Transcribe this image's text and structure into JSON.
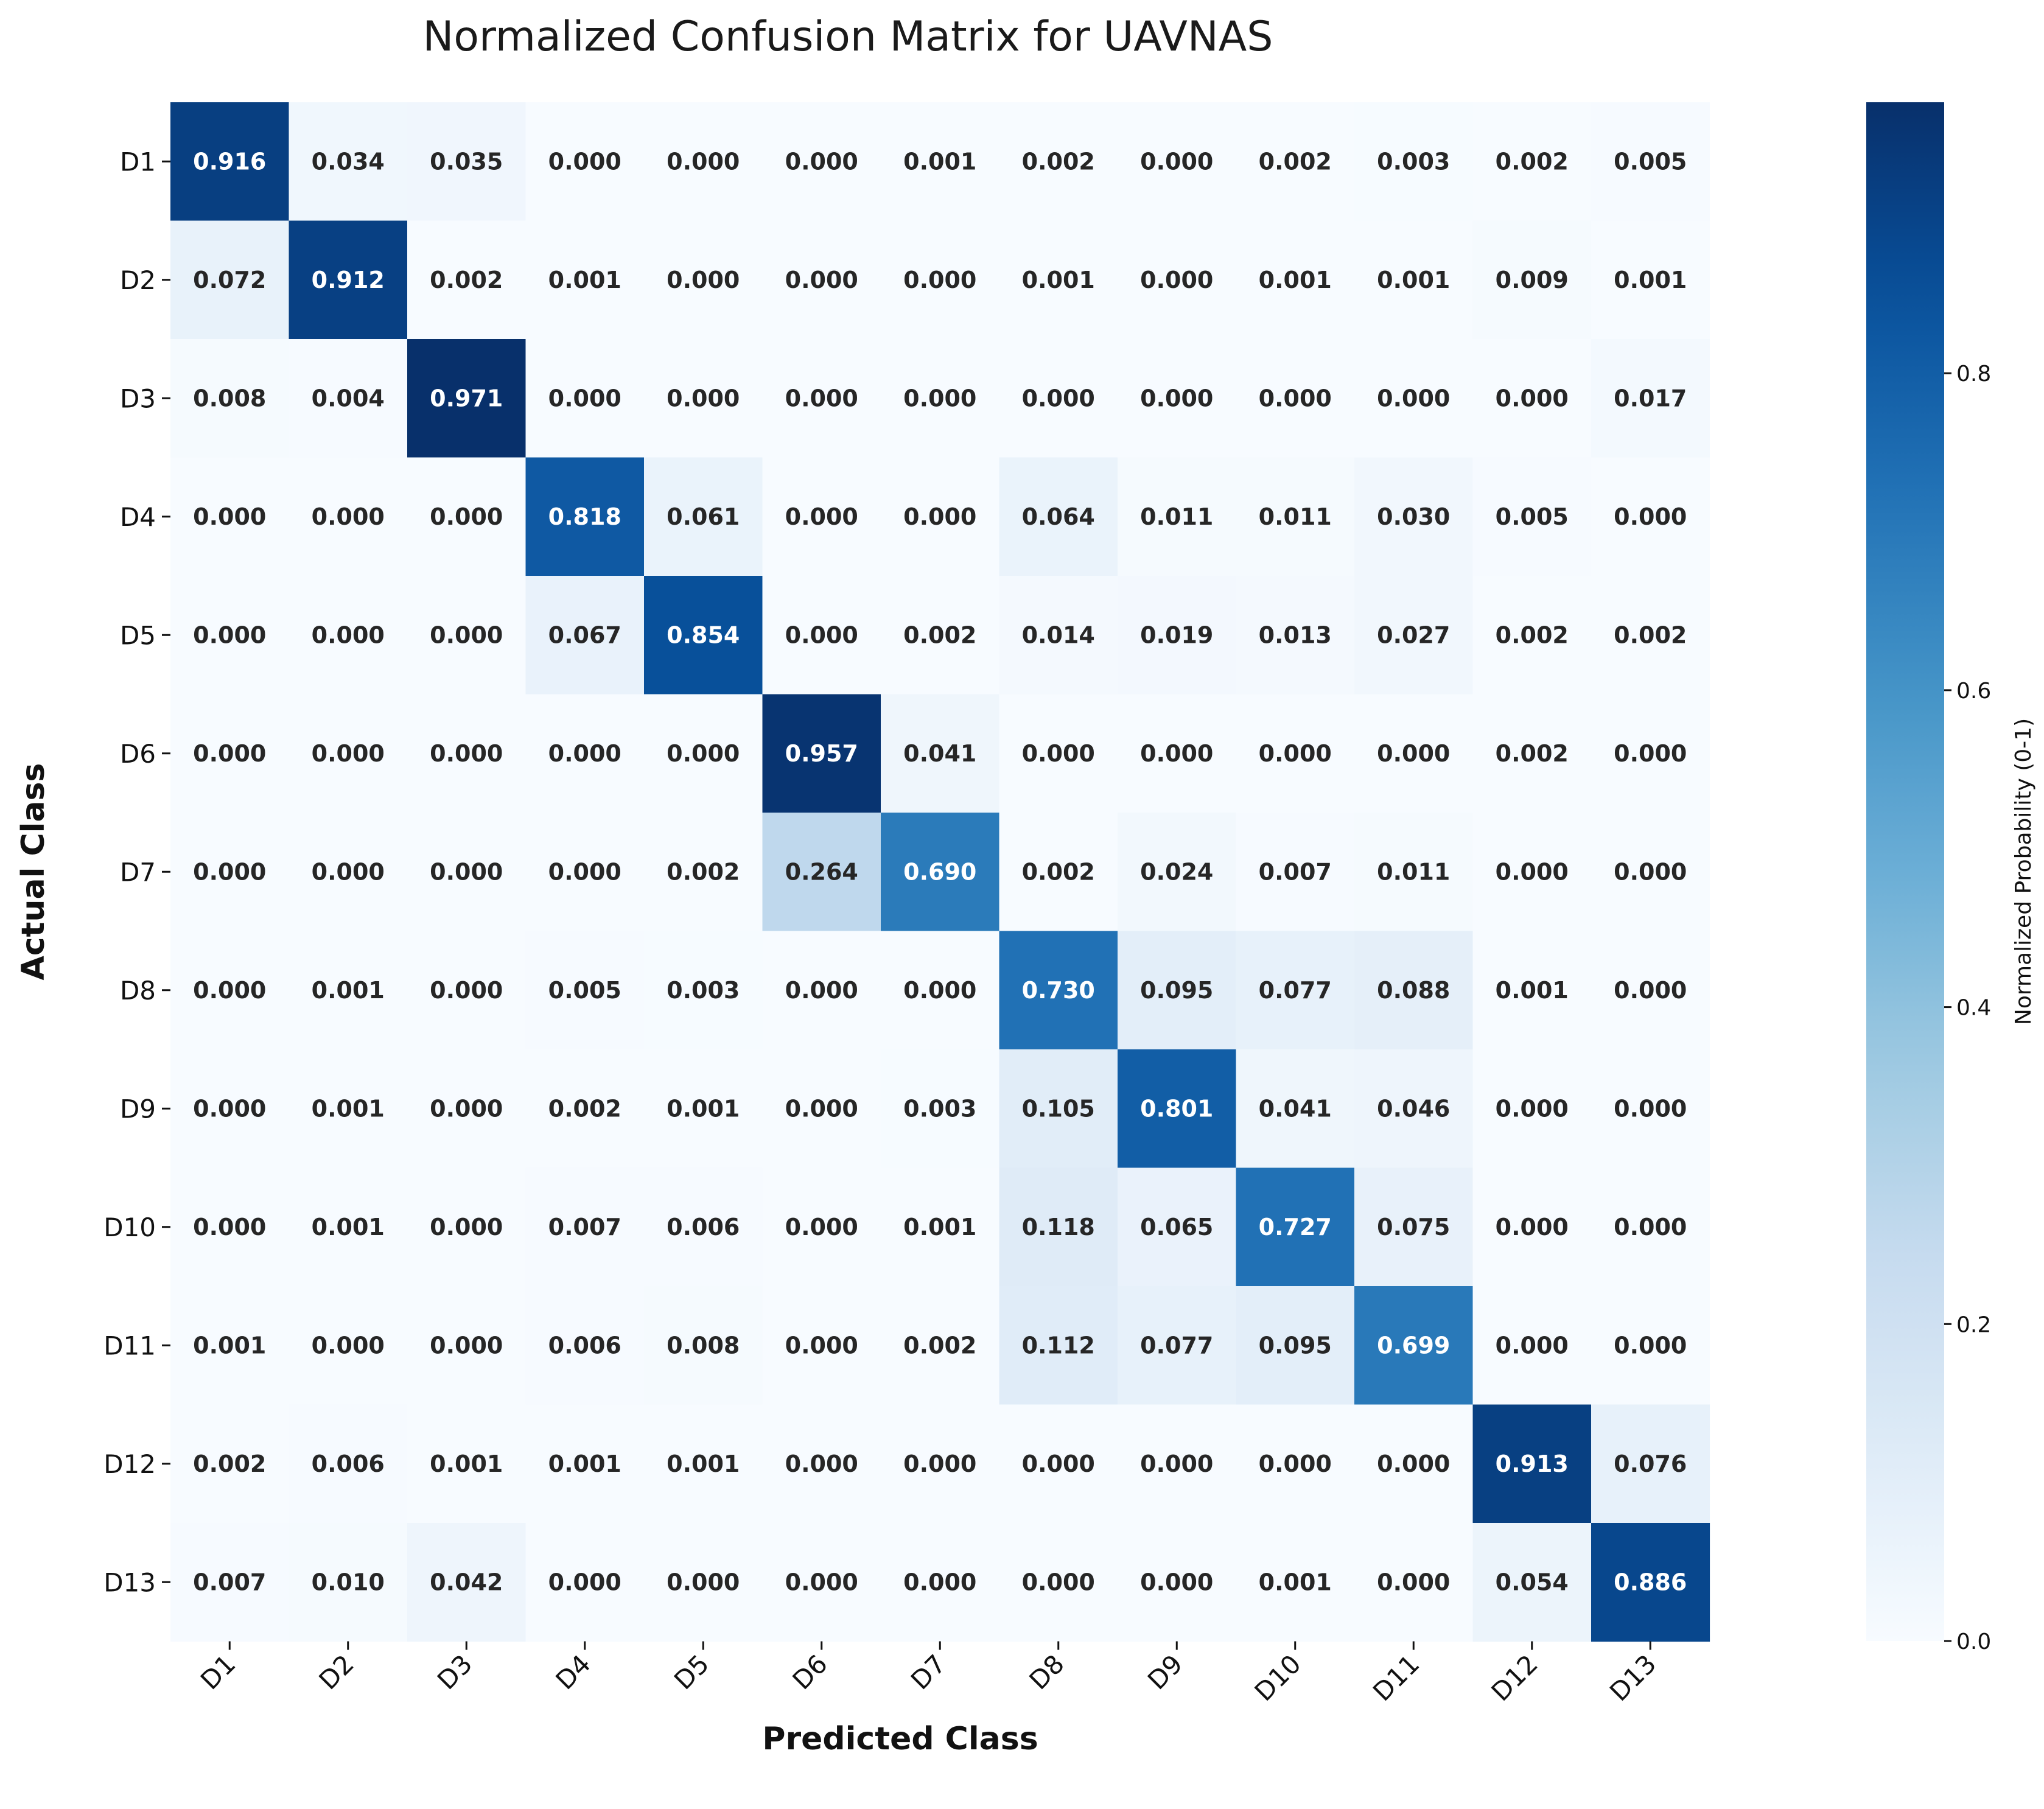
{
  "chart_data": {
    "type": "heatmap",
    "title": "Normalized Confusion Matrix for UAVNAS",
    "xlabel": "Predicted Class",
    "ylabel": "Actual Class",
    "x_categories": [
      "D1",
      "D2",
      "D3",
      "D4",
      "D5",
      "D6",
      "D7",
      "D8",
      "D9",
      "D10",
      "D11",
      "D12",
      "D13"
    ],
    "y_categories": [
      "D1",
      "D2",
      "D3",
      "D4",
      "D5",
      "D6",
      "D7",
      "D8",
      "D9",
      "D10",
      "D11",
      "D12",
      "D13"
    ],
    "values": [
      [
        0.916,
        0.034,
        0.035,
        0.0,
        0.0,
        0.0,
        0.001,
        0.002,
        0.0,
        0.002,
        0.003,
        0.002,
        0.005
      ],
      [
        0.072,
        0.912,
        0.002,
        0.001,
        0.0,
        0.0,
        0.0,
        0.001,
        0.0,
        0.001,
        0.001,
        0.009,
        0.001
      ],
      [
        0.008,
        0.004,
        0.971,
        0.0,
        0.0,
        0.0,
        0.0,
        0.0,
        0.0,
        0.0,
        0.0,
        0.0,
        0.017
      ],
      [
        0.0,
        0.0,
        0.0,
        0.818,
        0.061,
        0.0,
        0.0,
        0.064,
        0.011,
        0.011,
        0.03,
        0.005,
        0.0
      ],
      [
        0.0,
        0.0,
        0.0,
        0.067,
        0.854,
        0.0,
        0.002,
        0.014,
        0.019,
        0.013,
        0.027,
        0.002,
        0.002
      ],
      [
        0.0,
        0.0,
        0.0,
        0.0,
        0.0,
        0.957,
        0.041,
        0.0,
        0.0,
        0.0,
        0.0,
        0.002,
        0.0
      ],
      [
        0.0,
        0.0,
        0.0,
        0.0,
        0.002,
        0.264,
        0.69,
        0.002,
        0.024,
        0.007,
        0.011,
        0.0,
        0.0
      ],
      [
        0.0,
        0.001,
        0.0,
        0.005,
        0.003,
        0.0,
        0.0,
        0.73,
        0.095,
        0.077,
        0.088,
        0.001,
        0.0
      ],
      [
        0.0,
        0.001,
        0.0,
        0.002,
        0.001,
        0.0,
        0.003,
        0.105,
        0.801,
        0.041,
        0.046,
        0.0,
        0.0
      ],
      [
        0.0,
        0.001,
        0.0,
        0.007,
        0.006,
        0.0,
        0.001,
        0.118,
        0.065,
        0.727,
        0.075,
        0.0,
        0.0
      ],
      [
        0.001,
        0.0,
        0.0,
        0.006,
        0.008,
        0.0,
        0.002,
        0.112,
        0.077,
        0.095,
        0.699,
        0.0,
        0.0
      ],
      [
        0.002,
        0.006,
        0.001,
        0.001,
        0.001,
        0.0,
        0.0,
        0.0,
        0.0,
        0.0,
        0.0,
        0.913,
        0.076
      ],
      [
        0.007,
        0.01,
        0.042,
        0.0,
        0.0,
        0.0,
        0.0,
        0.0,
        0.0,
        0.001,
        0.0,
        0.054,
        0.886
      ]
    ],
    "colormap": "Blues",
    "vmin": 0.0,
    "vmax": 0.971,
    "colorbar": {
      "label": "Normalized Probability (0-1)",
      "ticks": [
        0.0,
        0.2,
        0.4,
        0.6,
        0.8
      ],
      "tick_labels": [
        "0.0",
        "0.2",
        "0.4",
        "0.6",
        "0.8"
      ]
    },
    "cell_text_colors": {
      "light": "#ffffff",
      "dark": "#262626"
    }
  }
}
